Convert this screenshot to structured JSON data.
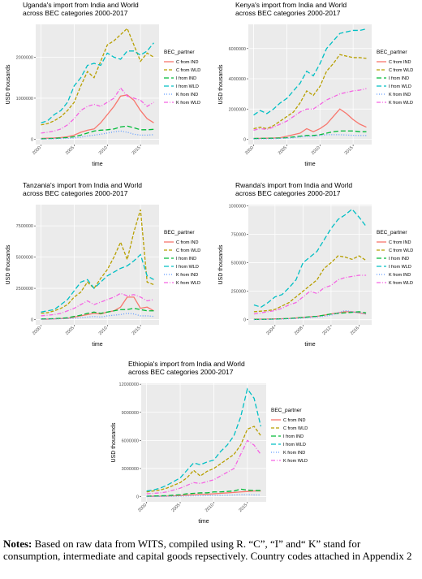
{
  "chart_data": [
    {
      "type": "line",
      "title": [
        "Uganda's import from India and World",
        "across BEC categories 2000-2017"
      ],
      "x_label": "time",
      "y_label": "USD thousands",
      "legend_title": "BEC_partner",
      "grid": true,
      "x": [
        2000,
        2001,
        2002,
        2003,
        2004,
        2005,
        2006,
        2007,
        2008,
        2009,
        2010,
        2011,
        2012,
        2013,
        2014,
        2015,
        2016,
        2017
      ],
      "xlim": [
        1999.2,
        2017.8
      ],
      "xticks": [
        2000,
        2005,
        2010,
        2015
      ],
      "ylim": [
        -130000,
        2800000
      ],
      "yticks": [
        0,
        1000000,
        2000000
      ],
      "series": [
        {
          "name": "C from IND",
          "color": "#F8766D",
          "dash": "none",
          "values": [
            20000,
            25000,
            30000,
            40000,
            60000,
            100000,
            170000,
            220000,
            250000,
            400000,
            600000,
            800000,
            1050000,
            1080000,
            950000,
            700000,
            500000,
            400000
          ]
        },
        {
          "name": "C from WLD",
          "color": "#B79F00",
          "dash": "4 2",
          "values": [
            350000,
            380000,
            450000,
            550000,
            700000,
            900000,
            1300000,
            1650000,
            1500000,
            1900000,
            2300000,
            2400000,
            2550000,
            2700000,
            2300000,
            1900000,
            2100000,
            2000000
          ]
        },
        {
          "name": "I from IND",
          "color": "#00BA38",
          "dash": "6 3",
          "values": [
            10000,
            15000,
            20000,
            30000,
            40000,
            60000,
            100000,
            150000,
            200000,
            220000,
            230000,
            250000,
            300000,
            320000,
            280000,
            230000,
            230000,
            240000
          ]
        },
        {
          "name": "I from WLD",
          "color": "#00BFC4",
          "dash": "6 3",
          "values": [
            400000,
            450000,
            600000,
            700000,
            900000,
            1300000,
            1500000,
            1800000,
            1850000,
            1800000,
            2100000,
            2000000,
            1950000,
            2150000,
            2150000,
            2050000,
            2150000,
            2350000
          ]
        },
        {
          "name": "K from IND",
          "color": "#619CFF",
          "dash": "1 2",
          "values": [
            5000,
            8000,
            10000,
            15000,
            20000,
            30000,
            50000,
            80000,
            100000,
            120000,
            150000,
            180000,
            200000,
            170000,
            120000,
            100000,
            100000,
            110000
          ]
        },
        {
          "name": "K from WLD",
          "color": "#F564E3",
          "dash": "5 2 1 2",
          "values": [
            150000,
            170000,
            200000,
            250000,
            350000,
            500000,
            700000,
            800000,
            850000,
            800000,
            900000,
            1000000,
            1250000,
            1050000,
            1000000,
            950000,
            800000,
            900000
          ]
        }
      ]
    },
    {
      "type": "line",
      "title": [
        "Kenya's import from India and World",
        "across BEC categories 2000-2017"
      ],
      "x_label": "time",
      "y_label": "USD thousands",
      "legend_title": "BEC_partner",
      "grid": true,
      "x": [
        2000,
        2001,
        2002,
        2003,
        2004,
        2005,
        2006,
        2007,
        2008,
        2009,
        2010,
        2011,
        2012,
        2013,
        2014,
        2015,
        2016,
        2017
      ],
      "xlim": [
        1999.2,
        2017.8
      ],
      "xticks": [
        2000,
        2005,
        2010,
        2015
      ],
      "ylim": [
        -350000,
        7600000
      ],
      "yticks": [
        0,
        2000000,
        4000000,
        6000000
      ],
      "series": [
        {
          "name": "C from IND",
          "color": "#F8766D",
          "dash": "none",
          "values": [
            50000,
            60000,
            70000,
            80000,
            100000,
            200000,
            300000,
            400000,
            700000,
            500000,
            700000,
            1000000,
            1500000,
            2000000,
            1700000,
            1300000,
            1000000,
            800000
          ]
        },
        {
          "name": "C from WLD",
          "color": "#B79F00",
          "dash": "4 2",
          "values": [
            700000,
            800000,
            700000,
            900000,
            1200000,
            1500000,
            1800000,
            2400000,
            3200000,
            2900000,
            3500000,
            4500000,
            5000000,
            5600000,
            5500000,
            5400000,
            5400000,
            5350000
          ]
        },
        {
          "name": "I from IND",
          "color": "#00BA38",
          "dash": "6 3",
          "values": [
            50000,
            60000,
            60000,
            70000,
            80000,
            100000,
            150000,
            200000,
            250000,
            250000,
            300000,
            400000,
            500000,
            550000,
            550000,
            550000,
            500000,
            500000
          ]
        },
        {
          "name": "I from WLD",
          "color": "#00BFC4",
          "dash": "6 3",
          "values": [
            1600000,
            1900000,
            1700000,
            2000000,
            2400000,
            2700000,
            3200000,
            3700000,
            4500000,
            4200000,
            5000000,
            6000000,
            6500000,
            7000000,
            7100000,
            7200000,
            7200000,
            7300000
          ]
        },
        {
          "name": "K from IND",
          "color": "#619CFF",
          "dash": "1 2",
          "values": [
            20000,
            25000,
            30000,
            35000,
            50000,
            70000,
            100000,
            150000,
            200000,
            200000,
            250000,
            300000,
            300000,
            300000,
            280000,
            260000,
            250000,
            250000
          ]
        },
        {
          "name": "K from WLD",
          "color": "#F564E3",
          "dash": "5 2 1 2",
          "values": [
            600000,
            700000,
            650000,
            800000,
            1000000,
            1200000,
            1500000,
            1800000,
            2000000,
            2000000,
            2300000,
            2600000,
            2800000,
            3000000,
            3100000,
            3200000,
            3250000,
            3350000
          ]
        }
      ]
    },
    {
      "type": "line",
      "title": [
        "Tanzania's import from India and World",
        "across BEC categories 2000-2017"
      ],
      "x_label": "time",
      "y_label": "USD thousands",
      "legend_title": "BEC_partner",
      "grid": true,
      "x": [
        2000,
        2001,
        2002,
        2003,
        2004,
        2005,
        2006,
        2007,
        2008,
        2009,
        2010,
        2011,
        2012,
        2013,
        2014,
        2015,
        2016,
        2017
      ],
      "xlim": [
        1999.2,
        2017.8
      ],
      "xticks": [
        2000,
        2005,
        2010,
        2015
      ],
      "ylim": [
        -420000,
        9200000
      ],
      "yticks": [
        0,
        2500000,
        5000000,
        7500000
      ],
      "series": [
        {
          "name": "C from IND",
          "color": "#F8766D",
          "dash": "none",
          "values": [
            30000,
            40000,
            50000,
            80000,
            100000,
            200000,
            300000,
            400000,
            500000,
            450000,
            600000,
            700000,
            1000000,
            1800000,
            1800000,
            900000,
            1000000,
            700000
          ]
        },
        {
          "name": "C from WLD",
          "color": "#B79F00",
          "dash": "4 2",
          "values": [
            500000,
            550000,
            700000,
            900000,
            1200000,
            1800000,
            2200000,
            3000000,
            2500000,
            3300000,
            4000000,
            5000000,
            6200000,
            4800000,
            7000000,
            8800000,
            3000000,
            2800000
          ]
        },
        {
          "name": "I from IND",
          "color": "#00BA38",
          "dash": "6 3",
          "values": [
            50000,
            60000,
            80000,
            100000,
            150000,
            250000,
            350000,
            500000,
            600000,
            500000,
            600000,
            700000,
            800000,
            800000,
            900000,
            800000,
            700000,
            700000
          ]
        },
        {
          "name": "I from WLD",
          "color": "#00BFC4",
          "dash": "6 3",
          "values": [
            600000,
            700000,
            800000,
            1200000,
            1600000,
            2300000,
            3000000,
            3200000,
            2500000,
            3000000,
            3500000,
            3800000,
            4100000,
            4300000,
            4700000,
            5200000,
            3500000,
            3200000
          ]
        },
        {
          "name": "K from IND",
          "color": "#619CFF",
          "dash": "1 2",
          "values": [
            20000,
            30000,
            40000,
            60000,
            80000,
            100000,
            150000,
            200000,
            250000,
            200000,
            300000,
            350000,
            400000,
            500000,
            450000,
            300000,
            300000,
            250000
          ]
        },
        {
          "name": "K from WLD",
          "color": "#F564E3",
          "dash": "5 2 1 2",
          "values": [
            300000,
            350000,
            400000,
            500000,
            700000,
            900000,
            1200000,
            1500000,
            1200000,
            1400000,
            1600000,
            1800000,
            2100000,
            1900000,
            2000000,
            1800000,
            1500000,
            1600000
          ]
        }
      ]
    },
    {
      "type": "line",
      "title": [
        "Rwanda's import from India and World",
        "across BEC categories 2000-2017"
      ],
      "x_label": "time",
      "y_label": "USD thousands",
      "legend_title": "BEC_partner",
      "grid": true,
      "x": [
        2001,
        2002,
        2003,
        2004,
        2005,
        2006,
        2007,
        2008,
        2009,
        2010,
        2011,
        2012,
        2013,
        2014,
        2015,
        2016,
        2017
      ],
      "xlim": [
        2000.2,
        2017.8
      ],
      "xticks": [
        2004,
        2008,
        2012,
        2016
      ],
      "ylim": [
        -45000,
        1010000
      ],
      "yticks": [
        0,
        250000,
        500000,
        750000,
        1000000
      ],
      "series": [
        {
          "name": "C from IND",
          "color": "#F8766D",
          "dash": "none",
          "values": [
            5000,
            5000,
            6000,
            7000,
            8000,
            10000,
            15000,
            20000,
            25000,
            30000,
            40000,
            50000,
            60000,
            70000,
            70000,
            60000,
            50000
          ]
        },
        {
          "name": "C from WLD",
          "color": "#B79F00",
          "dash": "4 2",
          "values": [
            70000,
            75000,
            80000,
            90000,
            120000,
            150000,
            200000,
            250000,
            300000,
            350000,
            450000,
            500000,
            560000,
            550000,
            530000,
            560000,
            520000
          ]
        },
        {
          "name": "I from IND",
          "color": "#00BA38",
          "dash": "6 3",
          "values": [
            2000,
            3000,
            4000,
            5000,
            8000,
            10000,
            15000,
            20000,
            25000,
            30000,
            40000,
            50000,
            55000,
            60000,
            65000,
            70000,
            60000
          ]
        },
        {
          "name": "I from WLD",
          "color": "#00BFC4",
          "dash": "6 3",
          "values": [
            130000,
            110000,
            150000,
            200000,
            220000,
            280000,
            350000,
            500000,
            550000,
            600000,
            700000,
            800000,
            880000,
            920000,
            970000,
            900000,
            820000
          ]
        },
        {
          "name": "K from IND",
          "color": "#619CFF",
          "dash": "1 2",
          "values": [
            1000,
            2000,
            3000,
            4000,
            5000,
            8000,
            10000,
            15000,
            20000,
            25000,
            30000,
            40000,
            60000,
            80000,
            70000,
            60000,
            50000
          ]
        },
        {
          "name": "K from WLD",
          "color": "#F564E3",
          "dash": "5 2 1 2",
          "values": [
            50000,
            60000,
            70000,
            80000,
            100000,
            130000,
            150000,
            200000,
            250000,
            230000,
            280000,
            300000,
            350000,
            370000,
            380000,
            390000,
            390000
          ]
        }
      ]
    },
    {
      "type": "line",
      "title": [
        "Ethiopia's import from India and World",
        "across BEC categories 2000-2017"
      ],
      "x_label": "time",
      "y_label": "USD thousands",
      "legend_title": "BEC_partner",
      "grid": true,
      "x": [
        2000,
        2001,
        2002,
        2003,
        2004,
        2005,
        2006,
        2007,
        2008,
        2009,
        2010,
        2011,
        2012,
        2013,
        2014,
        2015,
        2016,
        2017
      ],
      "xlim": [
        1999.2,
        2017.8
      ],
      "xticks": [
        2000,
        2005,
        2010,
        2015
      ],
      "ylim": [
        -560000,
        12100000
      ],
      "yticks": [
        0,
        3000000,
        6000000,
        9000000,
        12000000
      ],
      "series": [
        {
          "name": "C from IND",
          "color": "#F8766D",
          "dash": "none",
          "values": [
            30000,
            40000,
            50000,
            60000,
            80000,
            100000,
            150000,
            200000,
            250000,
            250000,
            300000,
            350000,
            400000,
            450000,
            500000,
            550000,
            600000,
            600000
          ]
        },
        {
          "name": "C from WLD",
          "color": "#B79F00",
          "dash": "4 2",
          "values": [
            500000,
            600000,
            700000,
            900000,
            1200000,
            1500000,
            2000000,
            2800000,
            2200000,
            2700000,
            3000000,
            3500000,
            4000000,
            4500000,
            5500000,
            7200000,
            7500000,
            6500000
          ]
        },
        {
          "name": "I from IND",
          "color": "#00BA38",
          "dash": "6 3",
          "values": [
            50000,
            60000,
            80000,
            100000,
            150000,
            200000,
            300000,
            350000,
            400000,
            400000,
            500000,
            500000,
            550000,
            600000,
            800000,
            700000,
            650000,
            650000
          ]
        },
        {
          "name": "I from WLD",
          "color": "#00BFC4",
          "dash": "6 3",
          "values": [
            600000,
            700000,
            900000,
            1200000,
            1600000,
            2000000,
            2800000,
            3600000,
            3400000,
            3700000,
            3900000,
            4800000,
            5500000,
            6500000,
            8500000,
            11500000,
            10500000,
            7500000
          ]
        },
        {
          "name": "K from IND",
          "color": "#619CFF",
          "dash": "1 2",
          "values": [
            10000,
            15000,
            20000,
            25000,
            30000,
            40000,
            60000,
            80000,
            90000,
            100000,
            120000,
            130000,
            150000,
            170000,
            200000,
            200000,
            180000,
            180000
          ]
        },
        {
          "name": "K from WLD",
          "color": "#F564E3",
          "dash": "5 2 1 2",
          "values": [
            300000,
            350000,
            400000,
            500000,
            700000,
            900000,
            1200000,
            1500000,
            1400000,
            1600000,
            1800000,
            2200000,
            2600000,
            3000000,
            4500000,
            6000000,
            5500000,
            4500000
          ]
        }
      ]
    }
  ],
  "notes": {
    "label": "Notes:",
    "text": "Based on raw data from WITS, compiled using R. “C”, “I” and“ K” stand for consumption, intermediate and capital goods repsectively. Country codes attached in Appendix 2"
  }
}
